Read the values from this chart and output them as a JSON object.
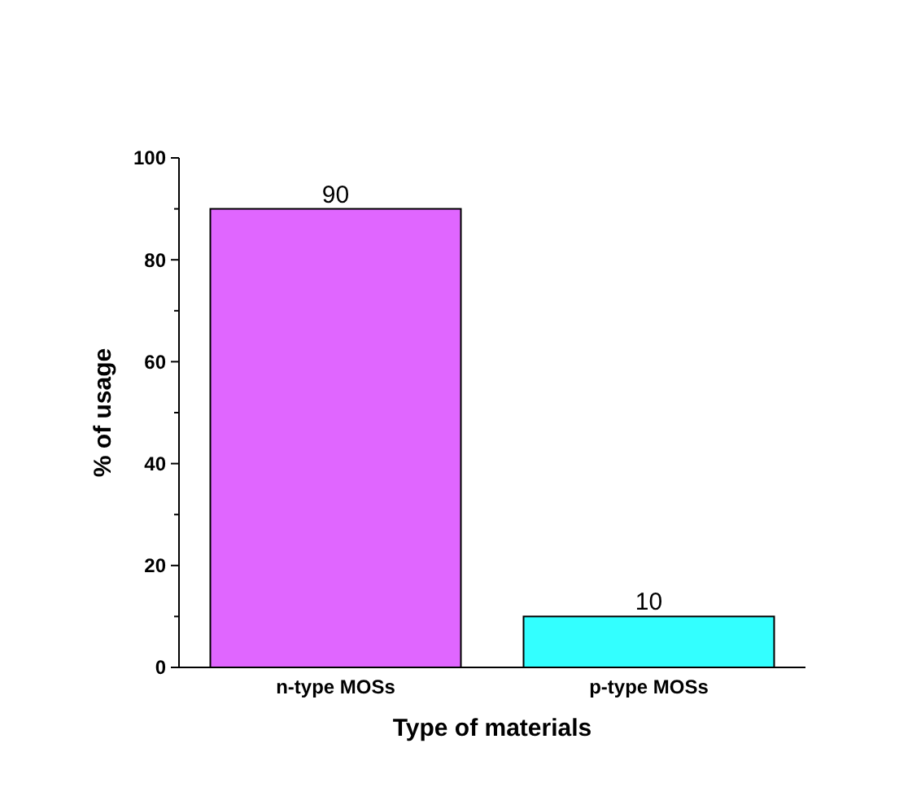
{
  "chart_data": {
    "type": "bar",
    "xlabel": "Type of materials",
    "ylabel": "% of usage",
    "categories": [
      "n-type MOSs",
      "p-type MOSs"
    ],
    "values": [
      90,
      10
    ],
    "colors": [
      "#e066ff",
      "#33ffff"
    ],
    "ylim": [
      0,
      100
    ],
    "yticks": [
      0,
      20,
      40,
      60,
      80,
      100
    ],
    "data_labels": true,
    "grid": false
  }
}
